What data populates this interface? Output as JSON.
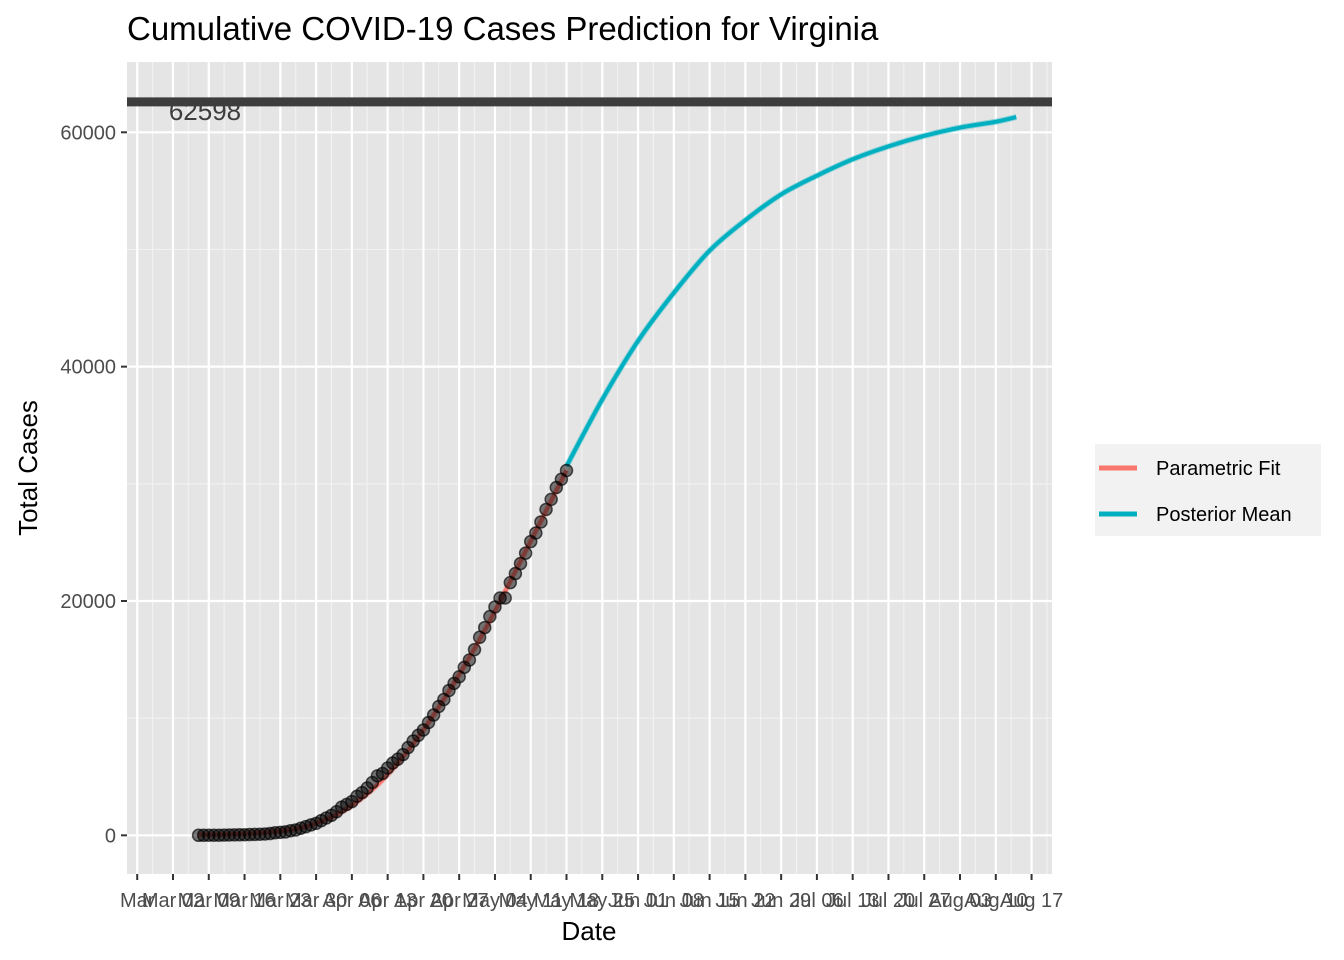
{
  "chart_data": {
    "type": "line",
    "title": "Cumulative COVID-19 Cases Prediction for Virginia",
    "xlabel": "Date",
    "ylabel": "Total Cases",
    "ylim": [
      -3300,
      66000
    ],
    "xlim": [
      "2020-02-22",
      "2020-08-21"
    ],
    "yticks": [
      0,
      20000,
      40000,
      60000
    ],
    "ytick_labels": [
      "0",
      "20000",
      "40000",
      "60000"
    ],
    "xticks": [
      "2020-02-24",
      "2020-03-02",
      "2020-03-09",
      "2020-03-16",
      "2020-03-23",
      "2020-03-30",
      "2020-04-06",
      "2020-04-13",
      "2020-04-20",
      "2020-04-27",
      "2020-05-04",
      "2020-05-11",
      "2020-05-18",
      "2020-05-25",
      "2020-06-01",
      "2020-06-08",
      "2020-06-15",
      "2020-06-22",
      "2020-06-29",
      "2020-07-06",
      "2020-07-13",
      "2020-07-20",
      "2020-07-27",
      "2020-08-03",
      "2020-08-10",
      "2020-08-17"
    ],
    "xtick_labels": [
      "Mar",
      "Mar 02",
      "Mar 09",
      "Mar 16",
      "Mar 23",
      "Mar 30",
      "Apr 06",
      "Apr 13",
      "Apr 20",
      "Apr 27",
      "May 04",
      "May 11",
      "May 18",
      "May 25",
      "Jun 01",
      "Jun 08",
      "Jun 15",
      "Jun 22",
      "Jun 29",
      "Jul 06",
      "Jul 13",
      "Jul 20",
      "Jul 27",
      "Aug 03",
      "Aug 10",
      "Aug 17"
    ],
    "grid": true,
    "background": "#e5e5e5",
    "legend_position": "right",
    "hline": {
      "value": 62598,
      "label": "62598",
      "color": "#3d3d3d"
    },
    "observed": {
      "dates": [
        "2020-03-07",
        "2020-03-08",
        "2020-03-09",
        "2020-03-10",
        "2020-03-11",
        "2020-03-12",
        "2020-03-13",
        "2020-03-14",
        "2020-03-15",
        "2020-03-16",
        "2020-03-17",
        "2020-03-18",
        "2020-03-19",
        "2020-03-20",
        "2020-03-21",
        "2020-03-22",
        "2020-03-23",
        "2020-03-24",
        "2020-03-25",
        "2020-03-26",
        "2020-03-27",
        "2020-03-28",
        "2020-03-29",
        "2020-03-30",
        "2020-03-31",
        "2020-04-01",
        "2020-04-02",
        "2020-04-03",
        "2020-04-04",
        "2020-04-05",
        "2020-04-06",
        "2020-04-07",
        "2020-04-08",
        "2020-04-09",
        "2020-04-10",
        "2020-04-11",
        "2020-04-12",
        "2020-04-13",
        "2020-04-14",
        "2020-04-15",
        "2020-04-16",
        "2020-04-17",
        "2020-04-18",
        "2020-04-19",
        "2020-04-20",
        "2020-04-21",
        "2020-04-22",
        "2020-04-23",
        "2020-04-24",
        "2020-04-25",
        "2020-04-26",
        "2020-04-27",
        "2020-04-28",
        "2020-04-29",
        "2020-04-30",
        "2020-05-01",
        "2020-05-02",
        "2020-05-03",
        "2020-05-04",
        "2020-05-05",
        "2020-05-06",
        "2020-05-07",
        "2020-05-08",
        "2020-05-09",
        "2020-05-10",
        "2020-05-11",
        "2020-05-12",
        "2020-05-13",
        "2020-05-14",
        "2020-05-15",
        "2020-05-16",
        "2020-05-17",
        "2020-05-18"
      ],
      "values": [
        2,
        3,
        5,
        8,
        9,
        17,
        30,
        41,
        45,
        51,
        67,
        77,
        94,
        114,
        152,
        219,
        254,
        290,
        391,
        460,
        604,
        739,
        890,
        1020,
        1250,
        1484,
        1706,
        2012,
        2407,
        2637,
        2878,
        3333,
        3645,
        4042,
        4509,
        5077,
        5274,
        5747,
        6171,
        6500,
        6889,
        7491,
        8053,
        8537,
        8990,
        9630,
        10266,
        10998,
        11594,
        12366,
        12970,
        13535,
        14339,
        14961,
        15846,
        16901,
        17731,
        18671,
        19492,
        20256,
        20257,
        21570,
        22342,
        23196,
        24081,
        25070,
        25800,
        26746,
        27813,
        28672,
        29683,
        30388,
        31140
      ]
    },
    "series": [
      {
        "name": "Parametric Fit",
        "color": "#f8766d",
        "x": [
          "2020-03-07",
          "2020-03-14",
          "2020-03-21",
          "2020-03-28",
          "2020-04-04",
          "2020-04-11",
          "2020-04-18",
          "2020-04-25",
          "2020-05-02",
          "2020-05-09",
          "2020-05-18"
        ],
        "y": [
          60,
          110,
          290,
          760,
          2000,
          4300,
          7800,
          12300,
          17500,
          23400,
          31140
        ]
      },
      {
        "name": "Posterior Mean",
        "color": "#00b0c0",
        "x": [
          "2020-05-18",
          "2020-05-25",
          "2020-06-01",
          "2020-06-08",
          "2020-06-15",
          "2020-06-22",
          "2020-06-29",
          "2020-07-06",
          "2020-07-13",
          "2020-07-20",
          "2020-07-27",
          "2020-08-03",
          "2020-08-10",
          "2020-08-14"
        ],
        "y": [
          31500,
          37200,
          42200,
          46300,
          49900,
          52500,
          54700,
          56300,
          57700,
          58800,
          59700,
          60400,
          60900,
          61300
        ]
      }
    ]
  }
}
